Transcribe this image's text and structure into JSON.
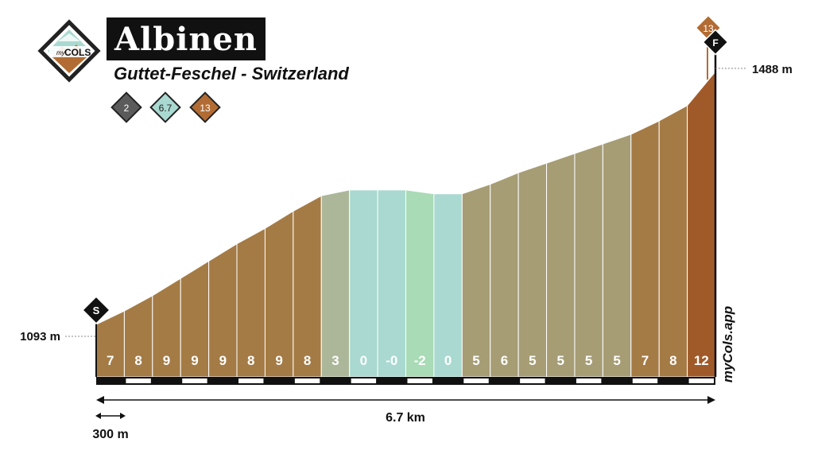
{
  "header": {
    "logo_text_my": "my",
    "logo_text_cols": "COLS",
    "title": "Albinen",
    "subtitle": "Guttet-Feschel - Switzerland",
    "badges": [
      {
        "value": "2",
        "color": "#5b5b5b"
      },
      {
        "value": "6.7",
        "color": "#a9d9d0"
      },
      {
        "value": "13",
        "color": "#b26c33"
      }
    ]
  },
  "markers": {
    "start_label": "S",
    "finish_label": "F",
    "finish_badge": "13"
  },
  "watermark": "myCols.app",
  "chart_data": {
    "type": "area",
    "title": "Albinen",
    "subtitle": "Guttet-Feschel - Switzerland",
    "start_elevation_label": "1093 m",
    "end_elevation_label": "1488 m",
    "ylim": [
      1093,
      1488
    ],
    "segment_length_m": 300,
    "segment_scale_label": "300 m",
    "total_distance_label": "6.7 km",
    "gradients": [
      "7",
      "8",
      "9",
      "9",
      "9",
      "8",
      "9",
      "8",
      "3",
      "0",
      "-0",
      "-2",
      "0",
      "5",
      "6",
      "5",
      "5",
      "5",
      "5",
      "7",
      "8",
      "12"
    ],
    "elevations": [
      1093,
      1114,
      1138,
      1165,
      1192,
      1219,
      1243,
      1270,
      1294,
      1303,
      1303,
      1303,
      1297,
      1297,
      1312,
      1330,
      1345,
      1360,
      1375,
      1390,
      1411,
      1435,
      1488
    ],
    "colors": {
      "steep_12": "#a05a29",
      "climb_7_9": "#a47b45",
      "climb_5_6": "#a69d75",
      "easy_3": "#acb79a",
      "flat_0": "#a9d9d0",
      "descent": "#a9dbb6"
    }
  }
}
